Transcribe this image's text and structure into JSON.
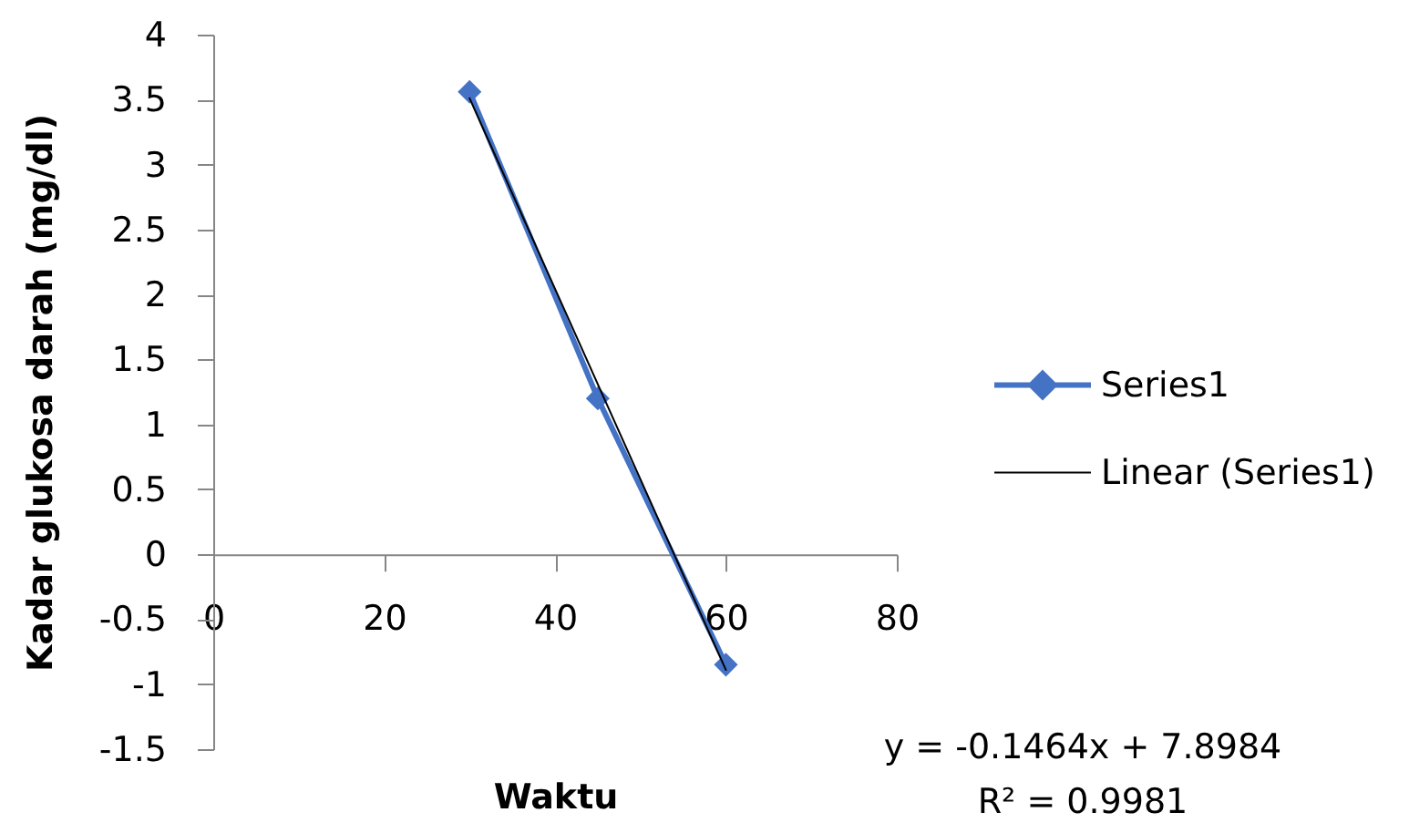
{
  "chart_data": {
    "type": "line",
    "xlabel": "Waktu",
    "ylabel": "Kadar glukosa darah (mg/dl)",
    "x": [
      30,
      45,
      60
    ],
    "series": [
      {
        "name": "Series1",
        "color": "#4472c4",
        "values": [
          3.56,
          1.2,
          -0.85
        ],
        "marker": "diamond"
      },
      {
        "name": "Linear (Series1)",
        "type": "line",
        "color": "#000000",
        "x": [
          30,
          60
        ],
        "values": [
          3.51,
          -0.89
        ],
        "marker": "none"
      }
    ],
    "xlim": [
      0,
      80
    ],
    "xticks": [
      0,
      20,
      40,
      60,
      80
    ],
    "ylim": [
      -1.5,
      4
    ],
    "yticks": [
      -1.5,
      -1,
      -0.5,
      0,
      0.5,
      1,
      1.5,
      2,
      2.5,
      3,
      3.5,
      4
    ],
    "grid": false,
    "legend": "right",
    "annotations": [
      "y = -0.1464x + 7.8984",
      "R² = 0.9981"
    ]
  }
}
